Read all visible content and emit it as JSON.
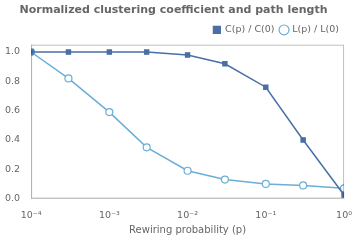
{
  "chart_data": {
    "type": "line",
    "title": "Normalized clustering coefficient and path length",
    "x_label": "Rewiring probability (p)",
    "x": [
      0.0001,
      0.0003,
      0.001,
      0.003,
      0.01,
      0.03,
      0.1,
      0.3,
      1.0
    ],
    "series": [
      {
        "name": "C(p) / C(0)",
        "color": "#4a6fa5",
        "marker": "square",
        "values": [
          1.0,
          1.0,
          1.0,
          1.0,
          0.98,
          0.92,
          0.76,
          0.4,
          0.025
        ]
      },
      {
        "name": "L(p) / L(0)",
        "color": "#6baed6",
        "marker": "circle",
        "values": [
          1.0,
          0.82,
          0.59,
          0.35,
          0.19,
          0.13,
          0.1,
          0.09,
          0.07
        ]
      }
    ],
    "log": "x",
    "xlim": [
      0.0001,
      1
    ],
    "xticks": [
      {
        "value": 0.0001,
        "label": "10⁻⁴"
      },
      {
        "value": 0.001,
        "label": "10⁻³"
      },
      {
        "value": 0.01,
        "label": "10⁻²"
      },
      {
        "value": 0.1,
        "label": "10⁻¹"
      },
      {
        "value": 1,
        "label": "10⁰"
      }
    ],
    "ylim": [
      0.0,
      1.05
    ],
    "yticks": [
      {
        "value": 0,
        "label": "0.0"
      },
      0.2,
      0.4,
      0.6,
      0.8,
      {
        "value": 1,
        "label": "1.0"
      }
    ],
    "grid": false,
    "legend": "upper right"
  }
}
